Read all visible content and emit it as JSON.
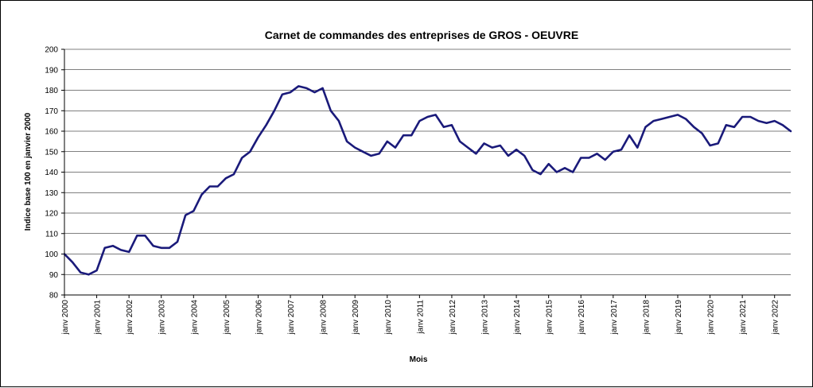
{
  "chart_data": {
    "type": "line",
    "title": "Carnet de commandes des entreprises de GROS - OEUVRE",
    "xlabel": "Mois",
    "ylabel": "Indice base 100 en janvier 2000",
    "ylim": [
      80,
      200
    ],
    "yticks": [
      80,
      90,
      100,
      110,
      120,
      130,
      140,
      150,
      160,
      170,
      180,
      190,
      200
    ],
    "xlim": [
      "2000-01",
      "2022-07"
    ],
    "x_tick_labels": [
      "janv 2000",
      "janv 2001",
      "janv 2002",
      "janv 2003",
      "janv 2004",
      "janv 2005",
      "janv 2006",
      "janv 2007",
      "janv 2008",
      "janv 2009",
      "janv 2010",
      "janv 2011",
      "janv 2012",
      "janv 2013",
      "janv 2014",
      "janv 2015",
      "janv 2016",
      "janv 2017",
      "janv 2018",
      "janv 2019",
      "janv 2020",
      "janv 2021",
      "janv 2022"
    ],
    "grid": true,
    "legend": "none",
    "line_color": "#1a1a7a",
    "series": [
      {
        "x": [
          "2000-01",
          "2000-04",
          "2000-07",
          "2000-10",
          "2001-01",
          "2001-04",
          "2001-07",
          "2001-10",
          "2002-01",
          "2002-04",
          "2002-07",
          "2002-10",
          "2003-01",
          "2003-04",
          "2003-07",
          "2003-10",
          "2004-01",
          "2004-04",
          "2004-07",
          "2004-10",
          "2005-01",
          "2005-04",
          "2005-07",
          "2005-10",
          "2006-01",
          "2006-04",
          "2006-07",
          "2006-10",
          "2007-01",
          "2007-04",
          "2007-07",
          "2007-10",
          "2008-01",
          "2008-04",
          "2008-07",
          "2008-10",
          "2009-01",
          "2009-04",
          "2009-07",
          "2009-10",
          "2010-01",
          "2010-04",
          "2010-07",
          "2010-10",
          "2011-01",
          "2011-04",
          "2011-07",
          "2011-10",
          "2012-01",
          "2012-04",
          "2012-07",
          "2012-10",
          "2013-01",
          "2013-04",
          "2013-07",
          "2013-10",
          "2014-01",
          "2014-04",
          "2014-07",
          "2014-10",
          "2015-01",
          "2015-04",
          "2015-07",
          "2015-10",
          "2016-01",
          "2016-04",
          "2016-07",
          "2016-10",
          "2017-01",
          "2017-04",
          "2017-07",
          "2017-10",
          "2018-01",
          "2018-04",
          "2018-07",
          "2018-10",
          "2019-01",
          "2019-04",
          "2019-07",
          "2019-10",
          "2020-01",
          "2020-04",
          "2020-07",
          "2020-10",
          "2021-01",
          "2021-04",
          "2021-07",
          "2021-10",
          "2022-01",
          "2022-04",
          "2022-07"
        ],
        "values": [
          100,
          96,
          91,
          90,
          92,
          103,
          104,
          102,
          101,
          109,
          109,
          104,
          103,
          103,
          106,
          119,
          121,
          129,
          133,
          133,
          137,
          139,
          147,
          150,
          157,
          163,
          170,
          178,
          179,
          182,
          181,
          179,
          181,
          170,
          165,
          155,
          152,
          150,
          148,
          149,
          155,
          152,
          158,
          158,
          165,
          167,
          168,
          162,
          163,
          155,
          152,
          149,
          154,
          152,
          153,
          148,
          151,
          148,
          141,
          139,
          144,
          140,
          142,
          140,
          147,
          147,
          149,
          146,
          150,
          151,
          158,
          152,
          162,
          165,
          166,
          167,
          168,
          166,
          162,
          159,
          153,
          154,
          163,
          162,
          167,
          167,
          165,
          164,
          165,
          163,
          160
        ]
      }
    ]
  }
}
